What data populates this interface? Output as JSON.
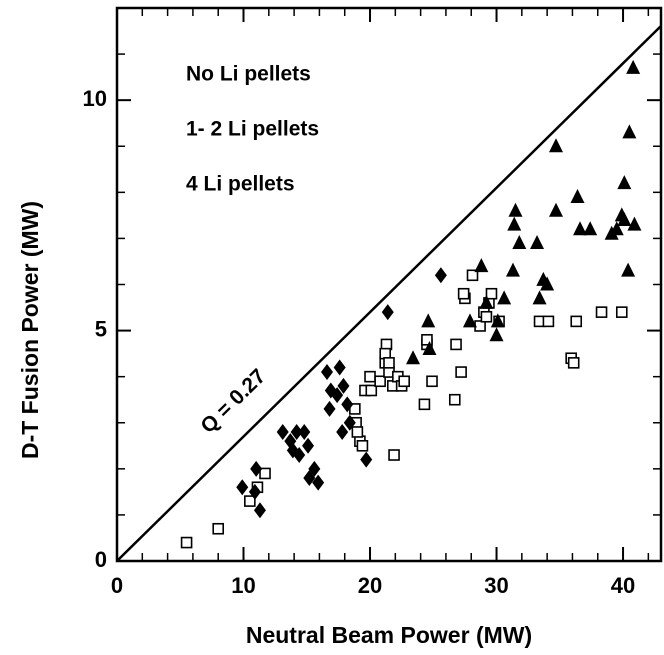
{
  "chart_data": {
    "type": "scatter",
    "x_label": "Neutral Beam Power (MW)",
    "y_label": "D-T Fusion Power (MW)",
    "xlim": [
      0,
      43
    ],
    "ylim": [
      0,
      12
    ],
    "xticks": [
      0,
      10,
      20,
      30,
      40
    ],
    "yticks": [
      0,
      5,
      10
    ],
    "legend": "upper left",
    "reference_line": {
      "label": "Q = 0.27",
      "slope": 0.27,
      "color": "#000000"
    },
    "series": [
      {
        "name": "No Li pellets",
        "marker": "square",
        "color": "#000000",
        "x": [
          5.5,
          8.0,
          10.5,
          11.1,
          11.7,
          18.8,
          18.9,
          19.2,
          19.4,
          19.0,
          19.6,
          20.0,
          20.1,
          20.8,
          21.2,
          21.3,
          21.5,
          21.8,
          22.2,
          22.5,
          21.9,
          22.7,
          24.3,
          24.9,
          24.5,
          24.5,
          26.7,
          26.8,
          27.2,
          27.5,
          27.4,
          28.1,
          28.7,
          29.0,
          29.4,
          29.6,
          30.2,
          29.2,
          33.4,
          34.1,
          35.9,
          36.1,
          36.3,
          38.3,
          39.9,
          21.2,
          21.5
        ],
        "values": [
          0.4,
          0.7,
          1.3,
          1.6,
          1.9,
          3.3,
          3.0,
          2.6,
          2.5,
          2.8,
          3.7,
          4.0,
          3.7,
          3.9,
          4.3,
          4.7,
          4.1,
          3.8,
          4.0,
          3.8,
          2.3,
          3.9,
          3.4,
          3.9,
          4.7,
          4.8,
          3.5,
          4.7,
          4.1,
          5.7,
          5.8,
          6.2,
          5.1,
          5.4,
          5.6,
          5.8,
          5.2,
          5.3,
          5.2,
          5.2,
          4.4,
          4.3,
          5.2,
          5.4,
          5.4,
          4.5,
          4.3
        ]
      },
      {
        "name": "1- 2 Li pellets",
        "marker": "diamond",
        "color": "#000000",
        "x": [
          9.9,
          11.0,
          11.3,
          10.9,
          13.1,
          13.7,
          13.9,
          14.4,
          14.8,
          14.2,
          15.1,
          15.2,
          15.6,
          15.9,
          16.6,
          16.9,
          16.8,
          17.4,
          17.6,
          17.9,
          17.8,
          18.2,
          18.4,
          19.7,
          21.4,
          25.6
        ],
        "values": [
          1.6,
          2.0,
          1.1,
          1.5,
          2.8,
          2.6,
          2.4,
          2.3,
          2.8,
          2.8,
          2.5,
          1.8,
          2.0,
          1.7,
          4.1,
          3.7,
          3.3,
          3.6,
          4.2,
          3.8,
          2.8,
          3.4,
          3.0,
          2.2,
          5.4,
          6.2
        ]
      },
      {
        "name": "4 Li pellets",
        "marker": "triangle",
        "color": "#000000",
        "x": [
          23.4,
          24.6,
          24.7,
          27.9,
          28.8,
          29.2,
          30.0,
          30.1,
          30.6,
          31.3,
          31.5,
          31.8,
          31.4,
          33.2,
          33.4,
          33.7,
          34.0,
          34.7,
          34.7,
          36.4,
          36.6,
          37.4,
          39.5,
          39.9,
          40.1,
          40.9,
          40.1,
          40.4,
          40.5,
          40.8,
          39.1
        ],
        "values": [
          4.4,
          5.2,
          4.6,
          5.2,
          6.4,
          5.6,
          4.9,
          5.2,
          5.7,
          6.3,
          7.6,
          6.9,
          7.3,
          6.9,
          5.7,
          6.1,
          6.0,
          9.0,
          7.6,
          7.9,
          7.2,
          7.2,
          7.2,
          7.5,
          7.4,
          7.3,
          8.2,
          6.3,
          9.3,
          10.7,
          7.1
        ]
      }
    ]
  }
}
